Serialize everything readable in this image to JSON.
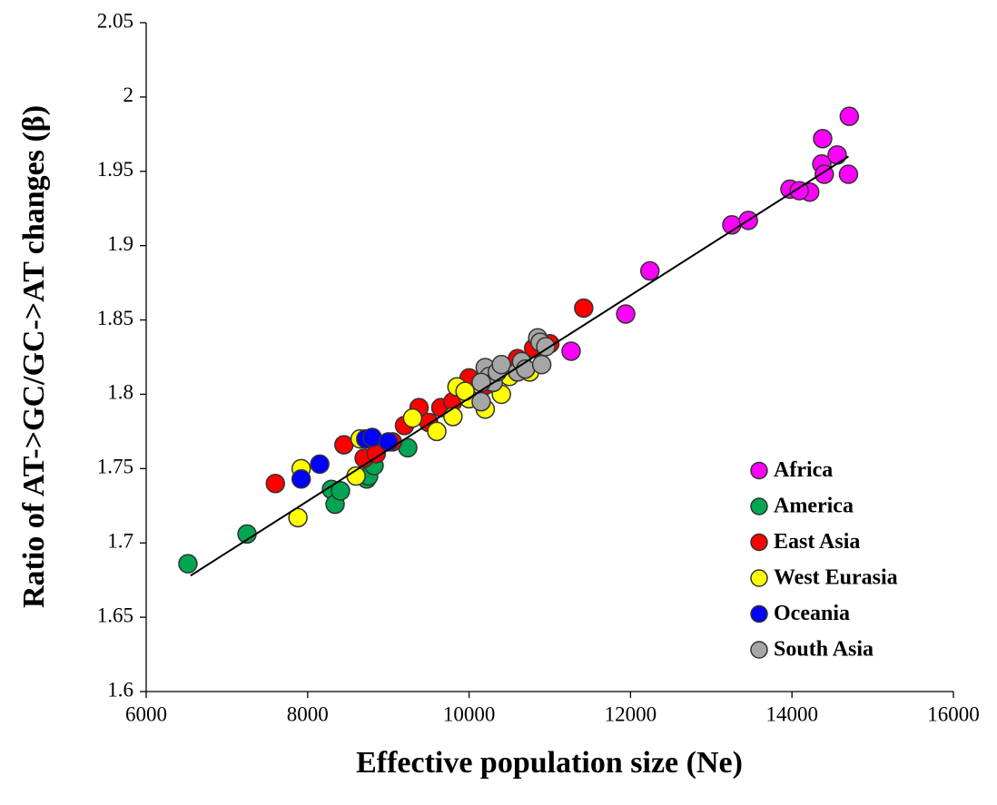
{
  "chart_data": {
    "type": "scatter",
    "x_label": "Effective population size (Ne)",
    "y_label": "Ratio of AT->GC/GC->AT changes (β)",
    "xlim": [
      6000,
      16000
    ],
    "ylim": [
      1.6,
      2.05
    ],
    "xticks": [
      6000,
      8000,
      10000,
      12000,
      14000,
      16000
    ],
    "yticks": [
      1.6,
      1.65,
      1.7,
      1.75,
      1.8,
      1.85,
      1.9,
      1.95,
      2,
      2.05
    ],
    "grid": false,
    "legend_position": "lower right",
    "trendline": {
      "color": "#000000",
      "x": [
        6550,
        14700
      ],
      "y": [
        1.678,
        1.96
      ]
    },
    "series": [
      {
        "name": "Africa",
        "color": "#ff00ff",
        "x": [
          14710,
          14700,
          14380,
          14370,
          14560,
          14400,
          14220,
          13975,
          14090,
          13255,
          13460,
          12240,
          11940,
          11264
        ],
        "values": [
          1.987,
          1.948,
          1.972,
          1.955,
          1.961,
          1.948,
          1.936,
          1.938,
          1.937,
          1.914,
          1.917,
          1.883,
          1.854,
          1.829
        ]
      },
      {
        "name": "America",
        "color": "#00a651",
        "x": [
          6517,
          7249,
          8295,
          8340,
          8407,
          8733,
          8756,
          8823,
          9240
        ],
        "values": [
          1.686,
          1.706,
          1.736,
          1.726,
          1.735,
          1.743,
          1.745,
          1.752,
          1.764
        ]
      },
      {
        "name": "East Asia",
        "color": "#ff0000",
        "x": [
          7600,
          8450,
          11420,
          8700,
          8850,
          9050,
          9200,
          9380,
          9500,
          9650,
          9800,
          10000,
          10200,
          10400,
          10600,
          10800,
          11000
        ],
        "values": [
          1.74,
          1.766,
          1.858,
          1.757,
          1.76,
          1.768,
          1.779,
          1.791,
          1.781,
          1.791,
          1.795,
          1.811,
          1.806,
          1.816,
          1.824,
          1.831,
          1.834
        ]
      },
      {
        "name": "West Eurasia",
        "color": "#ffff00",
        "x": [
          7880,
          7920,
          8600,
          8650,
          9300,
          9600,
          9800,
          9850,
          10200,
          10400,
          10500,
          10750,
          10000,
          9950
        ],
        "values": [
          1.717,
          1.75,
          1.745,
          1.77,
          1.784,
          1.775,
          1.785,
          1.805,
          1.79,
          1.8,
          1.812,
          1.815,
          1.797,
          1.802
        ]
      },
      {
        "name": "Oceania",
        "color": "#0000ff",
        "x": [
          7920,
          8150,
          8720,
          8800,
          9000
        ],
        "values": [
          1.743,
          1.753,
          1.77,
          1.771,
          1.768
        ]
      },
      {
        "name": "South Asia",
        "color": "#a6a6a6",
        "x": [
          10150,
          10200,
          10250,
          10300,
          10350,
          10400,
          10600,
          10650,
          10700,
          10850,
          10880,
          10900,
          10950,
          10150
        ],
        "values": [
          1.795,
          1.818,
          1.812,
          1.808,
          1.815,
          1.82,
          1.815,
          1.822,
          1.817,
          1.838,
          1.835,
          1.82,
          1.832,
          1.808
        ]
      }
    ]
  }
}
